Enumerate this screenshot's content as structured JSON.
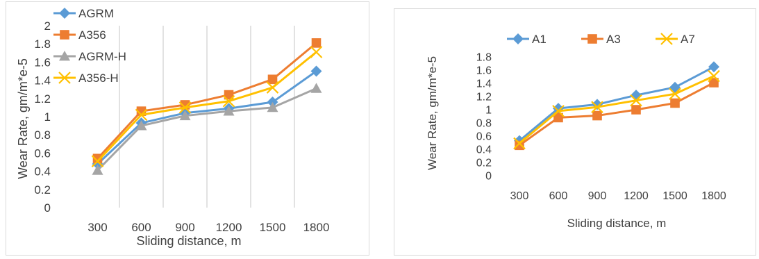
{
  "chart_data": [
    {
      "type": "line",
      "title": "",
      "xlabel": "Sliding distance, m",
      "ylabel": "Wear Rate, gm/m*e-5",
      "categories": [
        "300",
        "600",
        "900",
        "1200",
        "1500",
        "1800"
      ],
      "y_ticks": [
        "0",
        "0.2",
        "0.4",
        "0.6",
        "0.8",
        "1",
        "1.2",
        "1.4",
        "1.6",
        "1.8",
        "2"
      ],
      "ylim": [
        0,
        2
      ],
      "grid": "vertical",
      "legend_position": "top-left",
      "series": [
        {
          "name": "AGRM",
          "color": "#5b9bd5",
          "marker": "diamond",
          "values": [
            0.48,
            0.93,
            1.04,
            1.09,
            1.16,
            1.5
          ]
        },
        {
          "name": "A356",
          "color": "#ed7d31",
          "marker": "square",
          "values": [
            0.54,
            1.06,
            1.13,
            1.24,
            1.41,
            1.81
          ]
        },
        {
          "name": "AGRM-H",
          "color": "#a5a5a5",
          "marker": "triangle",
          "values": [
            0.41,
            0.9,
            1.01,
            1.06,
            1.1,
            1.31
          ]
        },
        {
          "name": "A356-H",
          "color": "#ffc000",
          "marker": "x",
          "values": [
            0.51,
            1.02,
            1.1,
            1.17,
            1.32,
            1.71
          ]
        }
      ]
    },
    {
      "type": "line",
      "title": "",
      "xlabel": "Sliding distance, m",
      "ylabel": "Wear Rate, gm/m*e-5",
      "categories": [
        "300",
        "600",
        "900",
        "1200",
        "1500",
        "1800"
      ],
      "y_ticks": [
        "0",
        "0.2",
        "0.4",
        "0.6",
        "0.8",
        "1",
        "1.2",
        "1.4",
        "1.6",
        "1.8"
      ],
      "ylim": [
        0,
        1.8
      ],
      "grid": "none",
      "legend_position": "top",
      "series": [
        {
          "name": "A1",
          "color": "#5b9bd5",
          "marker": "diamond",
          "values": [
            0.53,
            1.02,
            1.08,
            1.22,
            1.34,
            1.65
          ]
        },
        {
          "name": "A3",
          "color": "#ed7d31",
          "marker": "square",
          "values": [
            0.46,
            0.88,
            0.91,
            1.0,
            1.1,
            1.41
          ]
        },
        {
          "name": "A7",
          "color": "#ffc000",
          "marker": "x",
          "values": [
            0.49,
            0.98,
            1.04,
            1.14,
            1.24,
            1.51
          ]
        }
      ]
    }
  ]
}
